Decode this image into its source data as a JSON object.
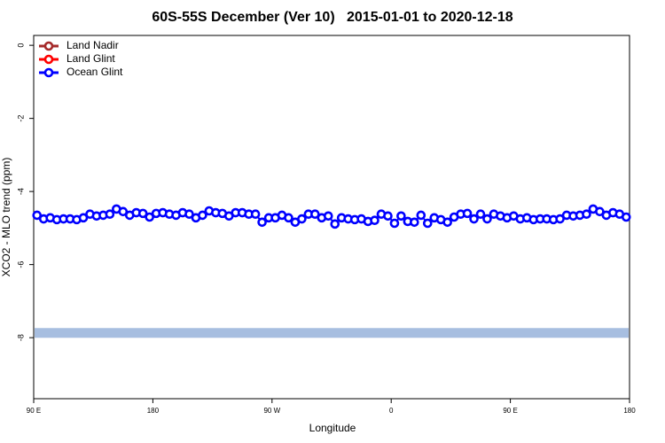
{
  "chart_data": {
    "type": "line",
    "title": "60S-55S December (Ver 10)   2015-01-01 to 2020-12-18",
    "x_label": "Longitude",
    "y_label": "XCO2 - MLO trend (ppm)",
    "xlim": [
      90,
      540
    ],
    "ylim": [
      -9.67,
      0.27
    ],
    "xticks": [
      {
        "value": 90,
        "label": "90 E"
      },
      180,
      {
        "value": 270,
        "label": "90 W"
      },
      {
        "value": 360,
        "label": "0"
      },
      {
        "value": 450,
        "label": "90 E"
      },
      {
        "value": 540,
        "label": "180"
      }
    ],
    "yticks": [
      0,
      -2,
      -4,
      -6,
      -8
    ],
    "legend_position": "top-left",
    "reference_line": {
      "value": -7.87,
      "color": "#a7bee0"
    },
    "x": [
      92.5,
      97.5,
      102.5,
      107.5,
      112.5,
      117.5,
      122.5,
      127.5,
      132.5,
      137.5,
      142.5,
      147.5,
      152.5,
      157.5,
      162.5,
      167.5,
      172.5,
      177.5,
      182.5,
      187.5,
      192.5,
      197.5,
      202.5,
      207.5,
      212.5,
      217.5,
      222.5,
      227.5,
      232.5,
      237.5,
      242.5,
      247.5,
      252.5,
      257.5,
      262.5,
      267.5,
      272.5,
      277.5,
      282.5,
      287.5,
      292.5,
      297.5,
      302.5,
      307.5,
      312.5,
      317.5,
      322.5,
      327.5,
      332.5,
      337.5,
      342.5,
      347.5,
      352.5,
      357.5,
      362.5,
      367.5,
      372.5,
      377.5,
      382.5,
      387.5,
      392.5,
      397.5,
      402.5,
      407.5,
      412.5,
      417.5,
      422.5,
      427.5,
      432.5,
      437.5,
      442.5,
      447.5,
      452.5,
      457.5,
      462.5,
      467.5,
      472.5,
      477.5,
      482.5,
      487.5,
      492.5,
      497.5,
      502.5,
      507.5,
      512.5,
      517.5,
      522.5,
      527.5,
      532.5,
      537.5
    ],
    "series": [
      {
        "name": "Land Nadir",
        "color": "#a52a2a"
      },
      {
        "name": "Land Glint",
        "color": "#ff0000"
      },
      {
        "name": "Ocean Glint",
        "color": "#0000ff",
        "values": [
          -4.65,
          -4.75,
          -4.72,
          -4.77,
          -4.75,
          -4.75,
          -4.77,
          -4.72,
          -4.62,
          -4.67,
          -4.65,
          -4.62,
          -4.48,
          -4.55,
          -4.65,
          -4.58,
          -4.6,
          -4.7,
          -4.6,
          -4.58,
          -4.62,
          -4.65,
          -4.58,
          -4.62,
          -4.72,
          -4.65,
          -4.53,
          -4.58,
          -4.6,
          -4.67,
          -4.58,
          -4.58,
          -4.62,
          -4.62,
          -4.84,
          -4.72,
          -4.72,
          -4.65,
          -4.72,
          -4.84,
          -4.75,
          -4.62,
          -4.62,
          -4.72,
          -4.67,
          -4.89,
          -4.72,
          -4.75,
          -4.77,
          -4.75,
          -4.82,
          -4.79,
          -4.62,
          -4.67,
          -4.87,
          -4.67,
          -4.82,
          -4.84,
          -4.65,
          -4.87,
          -4.72,
          -4.77,
          -4.84,
          -4.7,
          -4.62,
          -4.6,
          -4.75,
          -4.62,
          -4.75,
          -4.62,
          -4.67,
          -4.72,
          -4.67,
          -4.75,
          -4.72,
          -4.77,
          -4.75,
          -4.75,
          -4.77,
          -4.75,
          -4.65,
          -4.67,
          -4.65,
          -4.62,
          -4.48,
          -4.55,
          -4.65,
          -4.58,
          -4.62,
          -4.7
        ]
      }
    ]
  }
}
